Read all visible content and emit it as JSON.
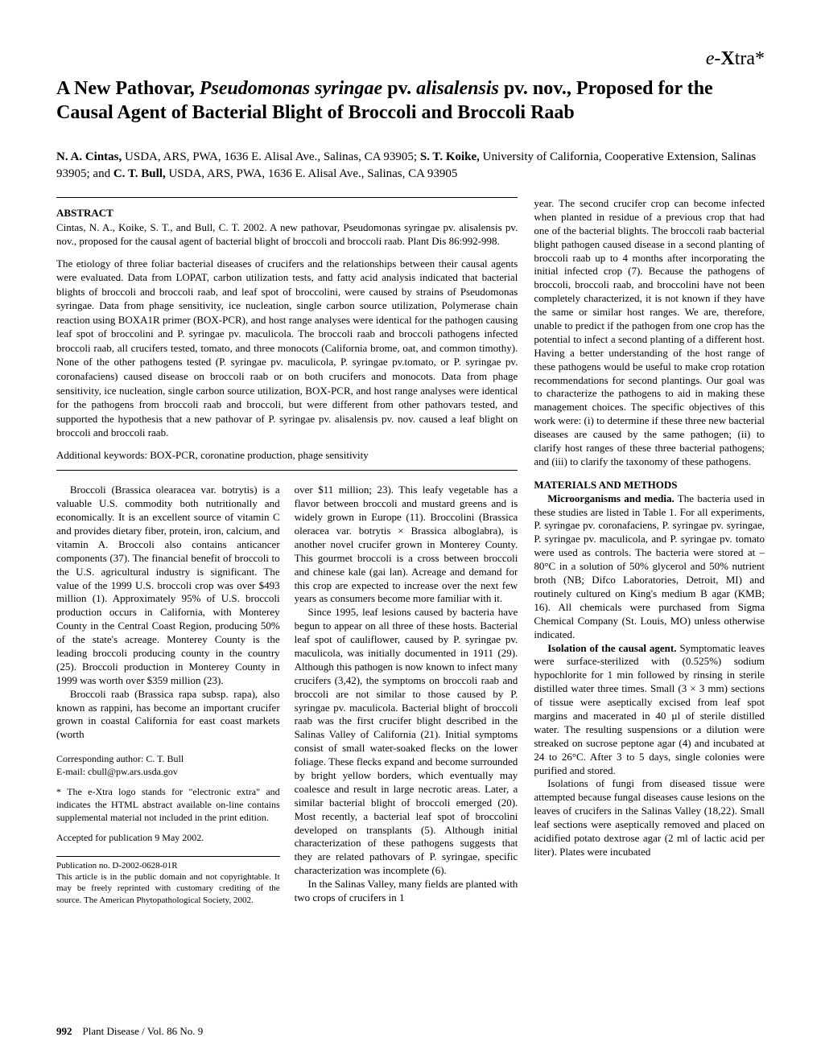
{
  "e_xtra": {
    "prefix": "e-",
    "bold": "X",
    "suffix": "tra*"
  },
  "title": {
    "t1": "A New Pathovar, ",
    "italic1": "Pseudomonas syringae",
    "t2": " pv. ",
    "italic2": "alisalensis",
    "t3": " pv. nov., Proposed for the Causal Agent of Bacterial Blight of Broccoli and Broccoli Raab"
  },
  "authors": {
    "a1": "N. A. Cintas,",
    "a1_affil": " USDA, ARS, PWA, 1636 E. Alisal Ave., Salinas, CA 93905; ",
    "a2": "S. T. Koike,",
    "a2_affil": " University of California, Cooperative Extension, Salinas 93905; and ",
    "a3": "C. T. Bull,",
    "a3_affil": " USDA, ARS, PWA, 1636 E. Alisal Ave., Salinas, CA 93905"
  },
  "abstract": {
    "header": "ABSTRACT",
    "citation": "Cintas, N. A., Koike, S. T., and Bull, C. T. 2002. A new pathovar, Pseudomonas syringae pv. alisalensis pv. nov., proposed for the causal agent of bacterial blight of broccoli and broccoli raab. Plant Dis 86:992-998.",
    "body": "The etiology of three foliar bacterial diseases of crucifers and the relationships between their causal agents were evaluated. Data from LOPAT, carbon utilization tests, and fatty acid analysis indicated that bacterial blights of broccoli and broccoli raab, and leaf spot of broccolini, were caused by strains of Pseudomonas syringae. Data from phage sensitivity, ice nucleation, single carbon source utilization, Polymerase chain reaction using BOXA1R primer (BOX-PCR), and host range analyses were identical for the pathogen causing leaf spot of broccolini and P. syringae pv. maculicola. The broccoli raab and broccoli pathogens infected broccoli raab, all crucifers tested, tomato, and three monocots (California brome, oat, and common timothy). None of the other pathogens tested (P. syringae pv. maculicola, P. syringae pv.tomato, or P. syringae pv. coronafaciens) caused disease on broccoli raab or on both crucifers and monocots. Data from phage sensitivity, ice nucleation, single carbon source utilization, BOX-PCR, and host range analyses were identical for the pathogens from broccoli raab and broccoli, but were different from other pathovars tested, and supported the hypothesis that a new pathovar of P. syringae pv. alisalensis pv. nov. caused a leaf blight on broccoli and broccoli raab.",
    "keywords": "Additional keywords: BOX-PCR, coronatine production, phage sensitivity"
  },
  "col_left": {
    "p1": "Broccoli (Brassica olearacea var. botrytis) is a valuable U.S. commodity both nutritionally and economically. It is an excellent source of vitamin C and provides dietary fiber, protein, iron, calcium, and vitamin A. Broccoli also contains anticancer components (37). The financial benefit of broccoli to the U.S. agricultural industry is significant. The value of the 1999 U.S. broccoli crop was over $493 million (1). Approximately 95% of U.S. broccoli production occurs in California, with Monterey County in the Central Coast Region, producing 50% of the state's acreage. Monterey County is the leading broccoli producing county in the country (25). Broccoli production in Monterey County in 1999 was worth over $359 million (23).",
    "p2": "Broccoli raab (Brassica rapa subsp. rapa), also known as rappini, has become an important crucifer grown in coastal California for east coast markets (worth",
    "corresponding1": "Corresponding author: C. T. Bull",
    "corresponding2": "E-mail: cbull@pw.ars.usda.gov",
    "extra_note": "* The e-Xtra logo stands for \"electronic extra\" and indicates the HTML abstract available on-line contains supplemental material not included in the print edition.",
    "accepted": "Accepted for publication 9 May 2002.",
    "pub1": "Publication no. D-2002-0628-01R",
    "pub2": "This article is in the public domain and not copyrightable. It may be freely reprinted with customary crediting of the source. The American Phytopathological Society, 2002."
  },
  "col_mid": {
    "p1": "over $11 million; 23). This leafy vegetable has a flavor between broccoli and mustard greens and is widely grown in Europe (11). Broccolini (Brassica oleracea var. botrytis × Brassica alboglabra), is another novel crucifer grown in Monterey County. This gourmet broccoli is a cross between broccoli and chinese kale (gai lan). Acreage and demand for this crop are expected to increase over the next few years as consumers become more familiar with it.",
    "p2": "Since 1995, leaf lesions caused by bacteria have begun to appear on all three of these hosts. Bacterial leaf spot of cauliflower, caused by P. syringae pv. maculicola, was initially documented in 1911 (29). Although this pathogen is now known to infect many crucifers (3,42), the symptoms on broccoli raab and broccoli are not similar to those caused by P. syringae pv. maculicola. Bacterial blight of broccoli raab was the first crucifer blight described in the Salinas Valley of California (21). Initial symptoms consist of small water-soaked flecks on the lower foliage. These flecks expand and become surrounded by bright yellow borders, which eventually may coalesce and result in large necrotic areas. Later, a similar bacterial blight of broccoli emerged (20). Most recently, a bacterial leaf spot of broccolini developed on transplants (5). Although initial characterization of these pathogens suggests that they are related pathovars of P. syringae, specific characterization was incomplete (6).",
    "p3": "In the Salinas Valley, many fields are planted with two crops of crucifers in 1"
  },
  "col_right": {
    "p1": "year. The second crucifer crop can become infected when planted in residue of a previous crop that had one of the bacterial blights. The broccoli raab bacterial blight pathogen caused disease in a second planting of broccoli raab up to 4 months after incorporating the initial infected crop (7). Because the pathogens of broccoli, broccoli raab, and broccolini have not been completely characterized, it is not known if they have the same or similar host ranges. We are, therefore, unable to predict if the pathogen from one crop has the potential to infect a second planting of a different host. Having a better understanding of the host range of these pathogens would be useful to make crop rotation recommendations for second plantings. Our goal was to characterize the pathogens to aid in making these management choices. The specific objectives of this work were: (i) to determine if these three new bacterial diseases are caused by the same pathogen; (ii) to clarify host ranges of these three bacterial pathogens; and (iii) to clarify the taxonomy of these pathogens.",
    "section": "MATERIALS AND METHODS",
    "p2_lead": "Microorganisms and media.",
    "p2": " The bacteria used in these studies are listed in Table 1. For all experiments, P. syringae pv. coronafaciens, P. syringae pv. syringae, P. syringae pv. maculicola, and P. syringae pv. tomato were used as controls. The bacteria were stored at –80°C in a solution of 50% glycerol and 50% nutrient broth (NB; Difco Laboratories, Detroit, MI) and routinely cultured on King's medium B agar (KMB; 16). All chemicals were purchased from Sigma Chemical Company (St. Louis, MO) unless otherwise indicated.",
    "p3_lead": "Isolation of the causal agent.",
    "p3": " Symptomatic leaves were surface-sterilized with (0.525%) sodium hypochlorite for 1 min followed by rinsing in sterile distilled water three times. Small (3 × 3 mm) sections of tissue were aseptically excised from leaf spot margins and macerated in 40 µl of sterile distilled water. The resulting suspensions or a dilution were streaked on sucrose peptone agar (4) and incubated at 24 to 26°C. After 3 to 5 days, single colonies were purified and stored.",
    "p4": "Isolations of fungi from diseased tissue were attempted because fungal diseases cause lesions on the leaves of crucifers in the Salinas Valley (18,22). Small leaf sections were aseptically removed and placed on acidified potato dextrose agar (2 ml of lactic acid per liter). Plates were incubated"
  },
  "footer": {
    "page": "992",
    "journal": "Plant Disease / Vol. 86 No. 9"
  }
}
